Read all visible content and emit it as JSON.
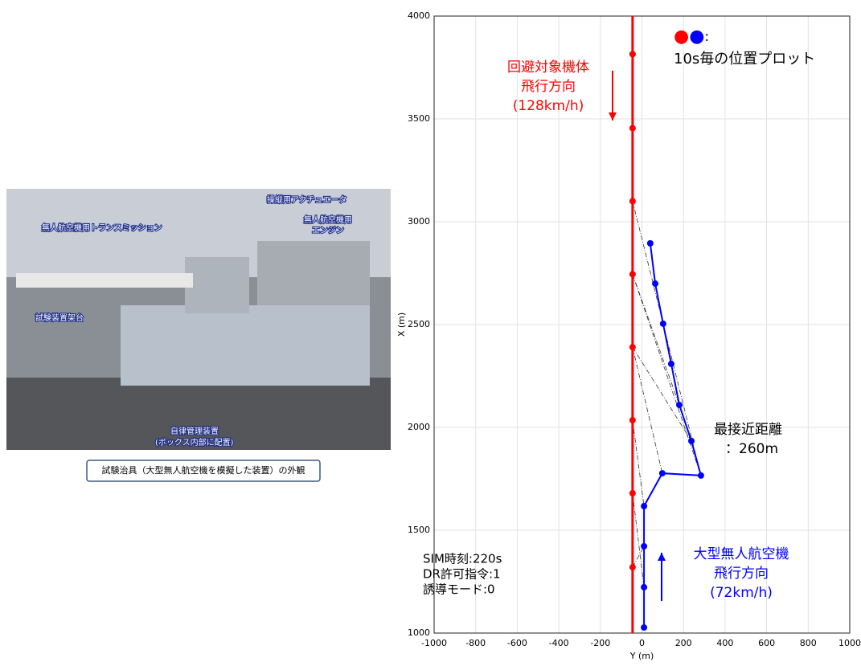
{
  "photo": {
    "labels": [
      "操縦用アクチュエータ",
      "無人航空機用トランスミッション",
      "無人航空機用",
      "エンジン",
      "試験装置架台",
      "自律管理装置",
      "(ボックス内部に配置)"
    ],
    "caption": "試験治具（大型無人航空機を模擬した装置）の外観"
  },
  "chart_data": {
    "type": "scatter",
    "xlabel": "Y (m)",
    "ylabel": "X (m)",
    "xlim": [
      -1000,
      1000
    ],
    "xticks": [
      -1000,
      -800,
      -600,
      -400,
      -200,
      0,
      200,
      400,
      600,
      800,
      1000
    ],
    "ylim": [
      1000,
      4000
    ],
    "yticks": [
      1000,
      1500,
      2000,
      2500,
      3000,
      3500,
      4000
    ],
    "grid": true,
    "series": [
      {
        "color": "#ff0000",
        "x": [
          -45,
          -45,
          -45,
          -45,
          -45,
          -45,
          -45,
          -45
        ],
        "values": [
          3815,
          3455,
          3100,
          2745,
          2390,
          2035,
          1680,
          1320
        ]
      },
      {
        "color": "#0000ff",
        "x": [
          40,
          64,
          102,
          141,
          180,
          238,
          284,
          98,
          10,
          10,
          10,
          10
        ],
        "values": [
          2895,
          2699,
          2504,
          2309,
          2109,
          1934,
          1766,
          1777,
          1617,
          1422,
          1223,
          1027
        ]
      }
    ],
    "legend": {
      "marks": "●●",
      "separator": ":",
      "text": "10s毎の位置プロット"
    },
    "annotations": [
      {
        "lines": [
          "回避対象機体",
          "飛行方向",
          "(128km/h)"
        ],
        "color": "#ff0000"
      },
      {
        "lines": [
          "大型無人航空機",
          "飛行方向",
          "(72km/h)"
        ],
        "color": "#0000ff"
      },
      {
        "lines": [
          "最接近距離",
          "：260m"
        ],
        "color": "#000000"
      },
      {
        "lines": [
          "SIM時刻:220s",
          "DR許可指令:1",
          "誘導モード:0"
        ],
        "color": "#000000"
      }
    ]
  }
}
